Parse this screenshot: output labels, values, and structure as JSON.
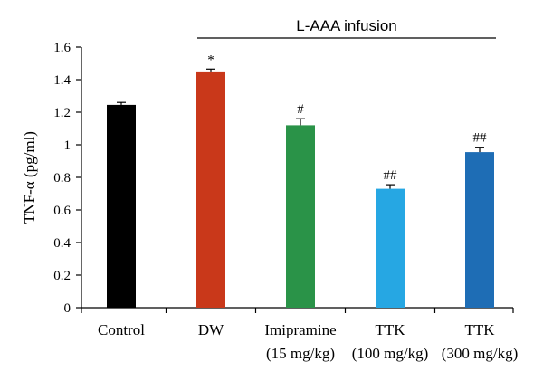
{
  "chart_data": {
    "type": "bar",
    "categories": [
      {
        "line1": "Control",
        "line2": ""
      },
      {
        "line1": "DW",
        "line2": ""
      },
      {
        "line1": "Imipramine",
        "line2": "(15 mg/kg)"
      },
      {
        "line1": "TTK",
        "line2": "(100 mg/kg)"
      },
      {
        "line1": "TTK",
        "line2": "(300 mg/kg)"
      }
    ],
    "values": [
      1.245,
      1.445,
      1.12,
      0.73,
      0.955
    ],
    "errors": [
      0.015,
      0.02,
      0.04,
      0.025,
      0.03
    ],
    "significance": [
      "",
      "*",
      "#",
      "##",
      "##"
    ],
    "colors": [
      "#000000",
      "#c9381a",
      "#2a9348",
      "#26a7e3",
      "#1e6db5"
    ],
    "ylabel": "TNF-α (pg/ml)",
    "ylim": [
      0,
      1.6
    ],
    "yticks": [
      0,
      0.2,
      0.4,
      0.6,
      0.8,
      1,
      1.2,
      1.4,
      1.6
    ],
    "ytick_labels": [
      "0",
      "0.2",
      "0.4",
      "0.6",
      "0.8",
      "1",
      "1.2",
      "1.4",
      "1.6"
    ],
    "bracket": {
      "label": "L-AAA infusion",
      "from_category": 1,
      "to_category": 4
    },
    "grid": false,
    "legend": "none"
  }
}
